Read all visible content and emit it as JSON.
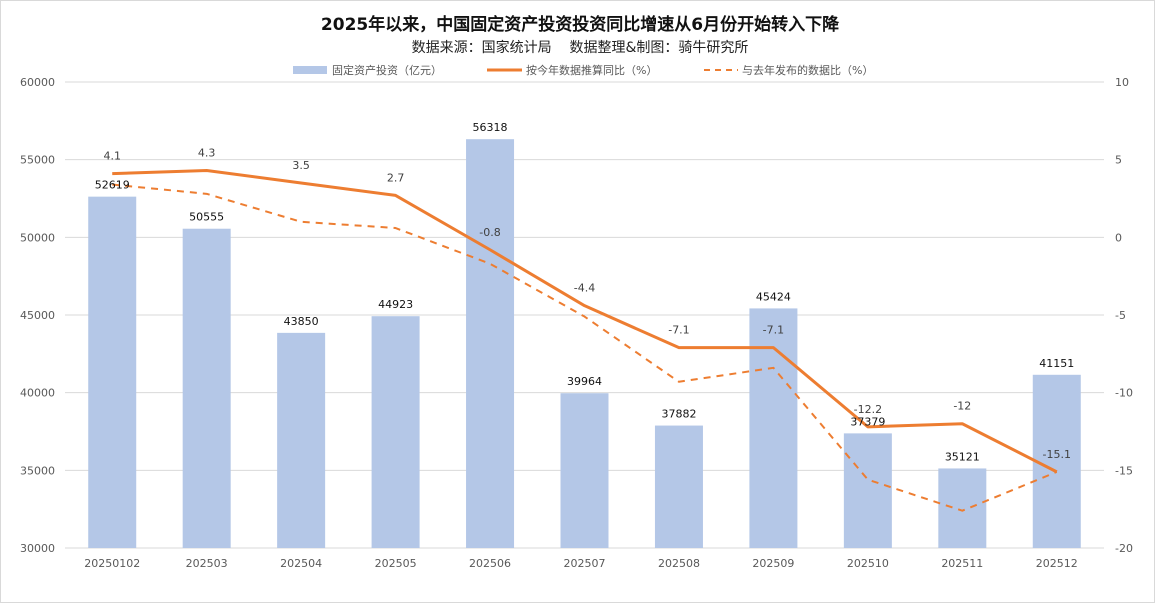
{
  "chart_data": {
    "type": "bar+line",
    "title": "2025年以来，中国固定资产投资投资同比增速从6月份开始转入下降",
    "subtitle": "数据来源：国家统计局    数据整理&制图：骑牛研究所",
    "categories": [
      "20250102",
      "202503",
      "202504",
      "202505",
      "202506",
      "202507",
      "202508",
      "202509",
      "202510",
      "202511",
      "202512"
    ],
    "series": [
      {
        "name": "固定资产投资（亿元）",
        "type": "bar",
        "axis": "left",
        "color": "#b4c7e7",
        "values": [
          52619,
          50555,
          43850,
          44923,
          56318,
          39964,
          37882,
          45424,
          37379,
          35121,
          41151
        ],
        "labels": [
          "52619",
          "50555",
          "43850",
          "44923",
          "56318",
          "39964",
          "37882",
          "45424",
          "37379",
          "35121",
          "41151"
        ]
      },
      {
        "name": "按今年数据推算同比（%）",
        "type": "line",
        "axis": "right",
        "color": "#ed7d31",
        "values": [
          4.1,
          4.3,
          3.5,
          2.7,
          -0.8,
          -4.4,
          -7.1,
          -7.1,
          -12.2,
          -12,
          -15.1
        ],
        "labels": [
          "4.1",
          "4.3",
          "3.5",
          "2.7",
          "-0.8",
          "-4.4",
          "-7.1",
          "-7.1",
          "-12.2",
          "-12",
          "-15.1"
        ]
      },
      {
        "name": "与去年发布的数据比（%）",
        "type": "line-dashed",
        "axis": "right",
        "color": "#ed7d31",
        "values": [
          3.4,
          2.8,
          1.0,
          0.6,
          -1.7,
          -5.1,
          -9.3,
          -8.4,
          -15.6,
          -17.6,
          -15.1
        ]
      }
    ],
    "left_axis": {
      "ylim": [
        30000,
        60000
      ],
      "ticks": [
        "30000",
        "35000",
        "40000",
        "45000",
        "50000",
        "55000",
        "60000"
      ]
    },
    "right_axis": {
      "ylim": [
        -20,
        10
      ],
      "ticks": [
        "-20",
        "-15",
        "-10",
        "-5",
        "0",
        "5",
        "10"
      ]
    },
    "legend": "top-center",
    "grid": true
  }
}
